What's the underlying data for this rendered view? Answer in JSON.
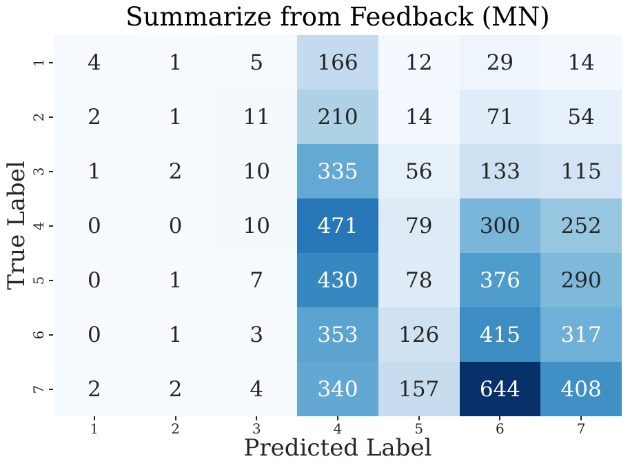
{
  "chart_data": {
    "type": "heatmap",
    "title": "Summarize from Feedback (MN)",
    "xlabel": "Predicted Label",
    "ylabel": "True Label",
    "x_tick_labels": [
      "1",
      "2",
      "3",
      "4",
      "5",
      "6",
      "7"
    ],
    "y_tick_labels": [
      "1",
      "2",
      "3",
      "4",
      "5",
      "6",
      "7"
    ],
    "colormap": "Blues",
    "vmin": 0,
    "vmax": 644,
    "legend": "none",
    "grid": false,
    "matrix": [
      [
        4,
        1,
        5,
        166,
        12,
        29,
        14
      ],
      [
        2,
        1,
        11,
        210,
        14,
        71,
        54
      ],
      [
        1,
        2,
        10,
        335,
        56,
        133,
        115
      ],
      [
        0,
        0,
        10,
        471,
        79,
        300,
        252
      ],
      [
        0,
        1,
        7,
        430,
        78,
        376,
        290
      ],
      [
        0,
        1,
        3,
        353,
        126,
        415,
        317
      ],
      [
        2,
        2,
        4,
        340,
        157,
        644,
        408
      ]
    ]
  },
  "colors": {
    "figure_background": "#ffffff",
    "title_text": "#000000",
    "axis_text": "#262626",
    "annotation_dark": "#262626",
    "annotation_light": "#ffffff",
    "tick_mark": "#262626",
    "colormap_min": "#f7fbff",
    "colormap_max": "#08306b"
  }
}
